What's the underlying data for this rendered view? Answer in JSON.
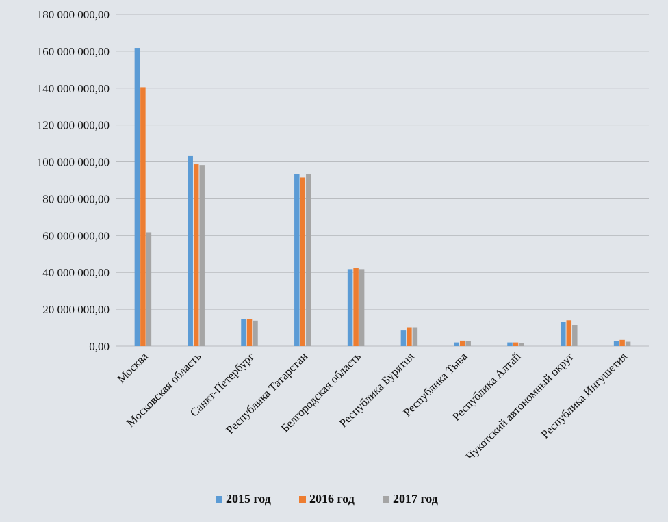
{
  "chart_data": {
    "type": "bar",
    "title": "",
    "xlabel": "",
    "ylabel": "",
    "ylim": [
      0,
      180000000
    ],
    "yticks": [
      0,
      20000000,
      40000000,
      60000000,
      80000000,
      100000000,
      120000000,
      140000000,
      160000000,
      180000000
    ],
    "ytick_labels": [
      "0,00",
      "20 000 000,00",
      "40 000 000,00",
      "60 000 000,00",
      "80 000 000,00",
      "100 000 000,00",
      "120 000 000,00",
      "140 000 000,00",
      "160 000 000,00",
      "180 000 000,00"
    ],
    "grid": true,
    "legend_position": "bottom",
    "categories": [
      "Москва",
      "Московская область",
      "Санкт-Петербург",
      "Республика Татарстан",
      "Белгородская область",
      "Республика Бурятия",
      "Республика Тыва",
      "Республика Алтай",
      "Чукотский автономный округ",
      "Республика Ингушетия"
    ],
    "series": [
      {
        "name": "2015 год",
        "color": "#5b9bd5",
        "values": [
          161800000,
          103200000,
          14800000,
          93200000,
          41800000,
          8500000,
          2000000,
          2000000,
          13200000,
          2700000
        ]
      },
      {
        "name": "2016 год",
        "color": "#ed7d31",
        "values": [
          140500000,
          98700000,
          14600000,
          91500000,
          42300000,
          10200000,
          3000000,
          2000000,
          14000000,
          3400000
        ]
      },
      {
        "name": "2017 год",
        "color": "#a5a5a5",
        "values": [
          61800000,
          98300000,
          13800000,
          93300000,
          41800000,
          10200000,
          2700000,
          1700000,
          11500000,
          2400000
        ]
      }
    ]
  }
}
